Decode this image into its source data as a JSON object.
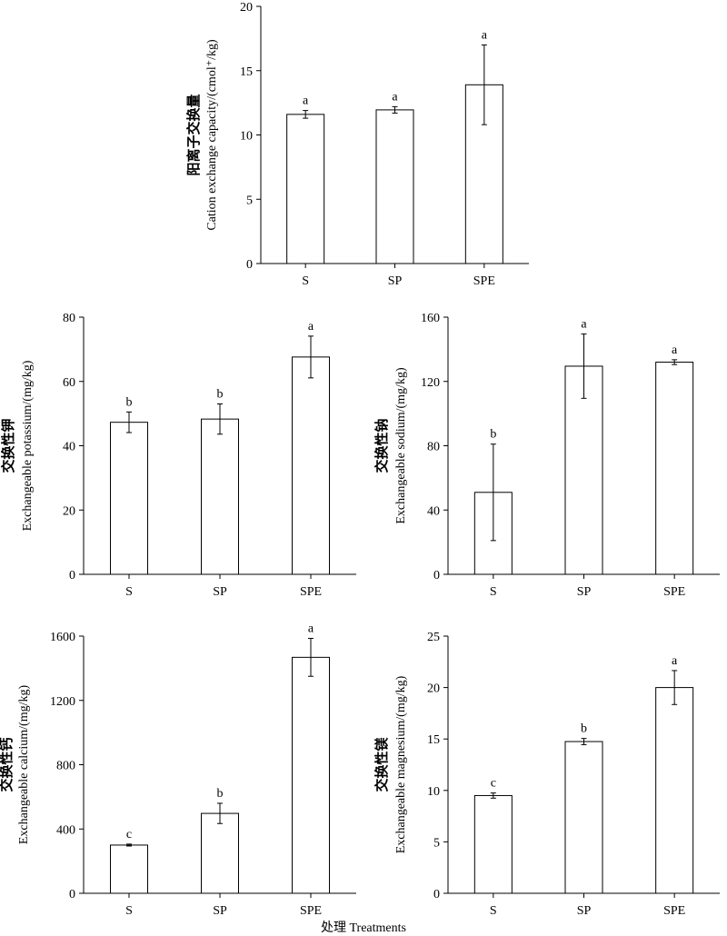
{
  "x_label": "处理 Treatments",
  "chart_data": [
    {
      "id": "cec",
      "type": "bar",
      "categories": [
        "S",
        "SP",
        "SPE"
      ],
      "values": [
        11.6,
        11.95,
        13.9
      ],
      "errors": [
        0.3,
        0.25,
        3.1
      ],
      "letters": [
        "a",
        "a",
        "a"
      ],
      "ylabel_cn": "阳离子交换量",
      "ylabel_en": "Cation exchange capacity/(cmol⁺/kg)",
      "ylim": [
        0,
        20
      ],
      "yticks": [
        0,
        5,
        10,
        15,
        20
      ]
    },
    {
      "id": "k",
      "type": "bar",
      "categories": [
        "S",
        "SP",
        "SPE"
      ],
      "values": [
        47.3,
        48.3,
        67.6
      ],
      "errors": [
        3.2,
        4.7,
        6.5
      ],
      "letters": [
        "b",
        "b",
        "a"
      ],
      "ylabel_cn": "交换性钾",
      "ylabel_en": "Exchangeable potassium/(mg/kg)",
      "ylim": [
        0,
        80
      ],
      "yticks": [
        0,
        20,
        40,
        60,
        80
      ]
    },
    {
      "id": "na",
      "type": "bar",
      "categories": [
        "S",
        "SP",
        "SPE"
      ],
      "values": [
        51,
        129.5,
        132
      ],
      "errors": [
        30,
        20,
        1.5
      ],
      "letters": [
        "b",
        "a",
        "a"
      ],
      "ylabel_cn": "交换性钠",
      "ylabel_en": "Exchangeable sodium/(mg/kg)",
      "ylim": [
        0,
        160
      ],
      "yticks": [
        0,
        40,
        80,
        120,
        160
      ]
    },
    {
      "id": "ca",
      "type": "bar",
      "categories": [
        "S",
        "SP",
        "SPE"
      ],
      "values": [
        300,
        497,
        1468
      ],
      "errors": [
        6,
        63,
        118
      ],
      "letters": [
        "c",
        "b",
        "a"
      ],
      "ylabel_cn": "交换性钙",
      "ylabel_en": "Exchangeable calcium/(mg/kg)",
      "ylim": [
        0,
        1600
      ],
      "yticks": [
        0,
        400,
        800,
        1200,
        1600
      ]
    },
    {
      "id": "mg",
      "type": "bar",
      "categories": [
        "S",
        "SP",
        "SPE"
      ],
      "values": [
        9.5,
        14.75,
        20.0
      ],
      "errors": [
        0.25,
        0.3,
        1.65
      ],
      "letters": [
        "c",
        "b",
        "a"
      ],
      "ylabel_cn": "交换性镁",
      "ylabel_en": "Exchangeable magnesium/(mg/kg)",
      "ylim": [
        0,
        25
      ],
      "yticks": [
        0,
        5,
        10,
        15,
        20,
        25
      ]
    }
  ]
}
